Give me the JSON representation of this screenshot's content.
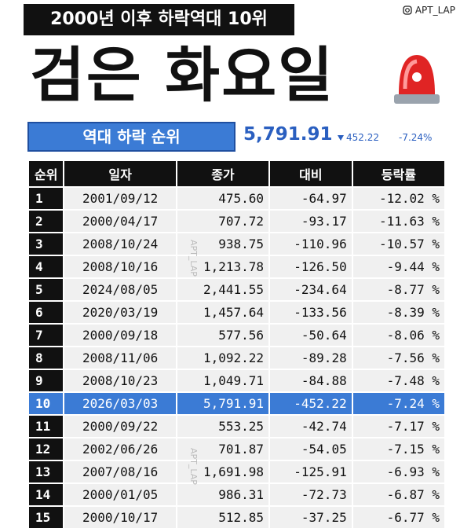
{
  "header": {
    "banner": "2000년 이후 하락역대 10위",
    "handle": "APT_LAP",
    "title": "검은 화요일"
  },
  "summary": {
    "label": "역대 하락 순위",
    "close": "5,791.91",
    "change": "452.22",
    "rate": "-7.24%"
  },
  "watermark": "APT_LAP",
  "table": {
    "columns": [
      "순위",
      "일자",
      "종가",
      "대비",
      "등락률"
    ],
    "rows": [
      [
        "1",
        "2001/09/12",
        "475.60",
        "-64.97",
        "-12.02 %"
      ],
      [
        "2",
        "2000/04/17",
        "707.72",
        "-93.17",
        "-11.63 %"
      ],
      [
        "3",
        "2008/10/24",
        "938.75",
        "-110.96",
        "-10.57 %"
      ],
      [
        "4",
        "2008/10/16",
        "1,213.78",
        "-126.50",
        "-9.44 %"
      ],
      [
        "5",
        "2024/08/05",
        "2,441.55",
        "-234.64",
        "-8.77 %"
      ],
      [
        "6",
        "2020/03/19",
        "1,457.64",
        "-133.56",
        "-8.39 %"
      ],
      [
        "7",
        "2000/09/18",
        "577.56",
        "-50.64",
        "-8.06 %"
      ],
      [
        "8",
        "2008/11/06",
        "1,092.22",
        "-89.28",
        "-7.56 %"
      ],
      [
        "9",
        "2008/10/23",
        "1,049.71",
        "-84.88",
        "-7.48 %"
      ],
      [
        "10",
        "2026/03/03",
        "5,791.91",
        "-452.22",
        "-7.24 %"
      ],
      [
        "11",
        "2000/09/22",
        "553.25",
        "-42.74",
        "-7.17 %"
      ],
      [
        "12",
        "2002/06/26",
        "701.87",
        "-54.05",
        "-7.15 %"
      ],
      [
        "13",
        "2007/08/16",
        "1,691.98",
        "-125.91",
        "-6.93 %"
      ],
      [
        "14",
        "2000/01/05",
        "986.31",
        "-72.73",
        "-6.87 %"
      ],
      [
        "15",
        "2000/10/17",
        "512.85",
        "-37.25",
        "-6.77 %"
      ]
    ]
  }
}
